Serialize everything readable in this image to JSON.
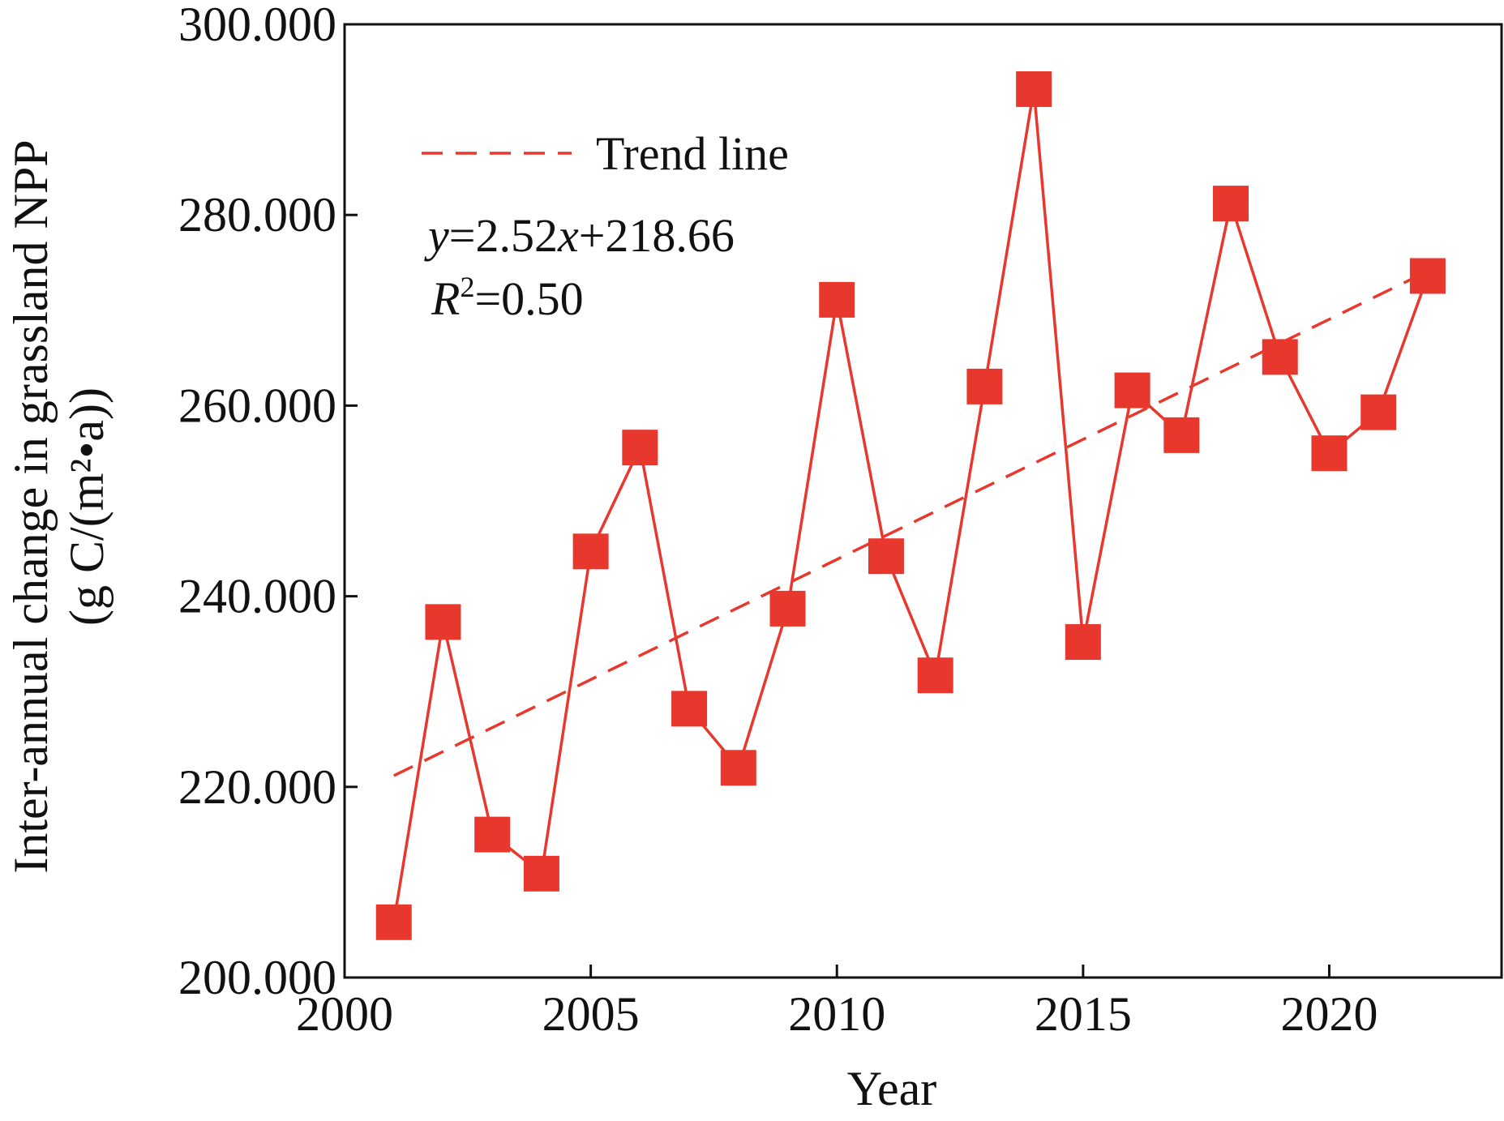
{
  "chart_data": {
    "type": "line",
    "xlabel": "Year",
    "ylabel_line1": "Inter-annual change in grassland NPP",
    "ylabel_line2": "(g C/(m²•a))",
    "xlim": [
      2000,
      2023.5
    ],
    "ylim": [
      200,
      300
    ],
    "x_ticks": [
      2000,
      2005,
      2010,
      2015,
      2020
    ],
    "x_tick_labels": [
      "2000",
      "2005",
      "2010",
      "2015",
      "2020"
    ],
    "y_ticks": [
      200,
      220,
      240,
      260,
      280,
      300
    ],
    "y_tick_labels": [
      "200.000",
      "220.000",
      "240.000",
      "260.000",
      "280.000",
      "300.000"
    ],
    "series": [
      {
        "color": "#e8382e",
        "marker": "square",
        "x": [
          2001,
          2002,
          2003,
          2004,
          2005,
          2006,
          2007,
          2008,
          2009,
          2010,
          2011,
          2012,
          2013,
          2014,
          2015,
          2016,
          2017,
          2018,
          2019,
          2020,
          2021,
          2022
        ],
        "y": [
          205.8,
          237.3,
          215.0,
          210.9,
          244.7,
          255.6,
          228.2,
          222.0,
          238.7,
          271.1,
          244.2,
          231.7,
          262.0,
          293.2,
          235.2,
          261.6,
          256.9,
          281.2,
          265.1,
          255.0,
          259.3,
          273.6
        ]
      },
      {
        "name": "Trend line",
        "style": "dashed",
        "color": "#e8382e",
        "slope": 2.52,
        "intercept": 218.66,
        "x_start_index": 1,
        "x_end_index": 22,
        "first_year": 2001
      }
    ],
    "legend": {
      "label": "Trend line",
      "placement": "top-left"
    },
    "equation": {
      "y_var": "y",
      "equals_slope": "=2.52",
      "x_var": "x",
      "intercept_part": "+218.66"
    },
    "r_squared": {
      "r": "R",
      "sup": "2",
      "value": "=0.50"
    },
    "grid": false
  }
}
